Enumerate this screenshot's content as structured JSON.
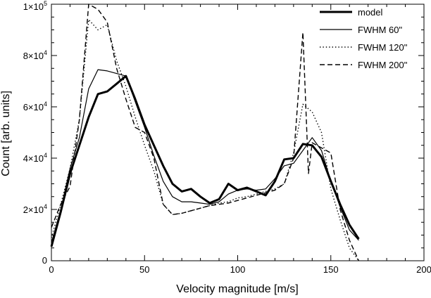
{
  "chart_data": {
    "type": "line",
    "xlabel": "Velocity magnitude [m/s]",
    "ylabel": "Count [arb. units]",
    "xlim": [
      0,
      200
    ],
    "ylim": [
      0,
      100000
    ],
    "grid": false,
    "legend_position": "top-right",
    "x_ticks": [
      {
        "value": 0,
        "label": "0"
      },
      {
        "value": 50,
        "label": "50"
      },
      {
        "value": 100,
        "label": "100"
      },
      {
        "value": 150,
        "label": "150"
      },
      {
        "value": 200,
        "label": "200"
      }
    ],
    "y_ticks": [
      {
        "value": 0,
        "mantissa": "0",
        "exponent": ""
      },
      {
        "value": 20000,
        "mantissa": "2×10",
        "exponent": "4"
      },
      {
        "value": 40000,
        "mantissa": "4×10",
        "exponent": "4"
      },
      {
        "value": 60000,
        "mantissa": "6×10",
        "exponent": "4"
      },
      {
        "value": 80000,
        "mantissa": "8×10",
        "exponent": "4"
      },
      {
        "value": 100000,
        "mantissa": "1×10",
        "exponent": "5"
      }
    ],
    "series": [
      {
        "name": "model",
        "style": "solid-thick",
        "points": [
          [
            0,
            5500
          ],
          [
            5,
            19000
          ],
          [
            10,
            34000
          ],
          [
            15,
            45000
          ],
          [
            20,
            56000
          ],
          [
            25,
            65000
          ],
          [
            30,
            66000
          ],
          [
            35,
            69000
          ],
          [
            40,
            72000
          ],
          [
            45,
            63000
          ],
          [
            50,
            53000
          ],
          [
            55,
            45000
          ],
          [
            60,
            37000
          ],
          [
            65,
            30000
          ],
          [
            70,
            27000
          ],
          [
            75,
            28000
          ],
          [
            80,
            25000
          ],
          [
            85,
            22500
          ],
          [
            90,
            24000
          ],
          [
            95,
            30000
          ],
          [
            100,
            27500
          ],
          [
            105,
            28500
          ],
          [
            110,
            27000
          ],
          [
            115,
            25500
          ],
          [
            120,
            31000
          ],
          [
            125,
            39500
          ],
          [
            130,
            40000
          ],
          [
            135,
            45500
          ],
          [
            140,
            45000
          ],
          [
            145,
            40500
          ],
          [
            150,
            31000
          ],
          [
            155,
            22000
          ],
          [
            160,
            14000
          ],
          [
            165,
            8500
          ]
        ]
      },
      {
        "name": "FWHM 60\"",
        "style": "solid-thin",
        "points": [
          [
            0,
            7000
          ],
          [
            5,
            20000
          ],
          [
            10,
            36000
          ],
          [
            15,
            48000
          ],
          [
            20,
            67000
          ],
          [
            25,
            74500
          ],
          [
            30,
            74000
          ],
          [
            35,
            73000
          ],
          [
            40,
            72000
          ],
          [
            45,
            62000
          ],
          [
            50,
            52000
          ],
          [
            55,
            41000
          ],
          [
            60,
            31000
          ],
          [
            65,
            25000
          ],
          [
            70,
            23000
          ],
          [
            75,
            23000
          ],
          [
            80,
            22500
          ],
          [
            85,
            22000
          ],
          [
            90,
            23000
          ],
          [
            95,
            26000
          ],
          [
            100,
            27500
          ],
          [
            105,
            28000
          ],
          [
            110,
            27500
          ],
          [
            115,
            28000
          ],
          [
            120,
            32000
          ],
          [
            125,
            37000
          ],
          [
            130,
            38000
          ],
          [
            135,
            43000
          ],
          [
            140,
            48000
          ],
          [
            145,
            43000
          ],
          [
            150,
            31000
          ],
          [
            155,
            21000
          ],
          [
            160,
            12000
          ],
          [
            165,
            8000
          ]
        ]
      },
      {
        "name": "FWHM 120\"",
        "style": "dotted",
        "points": [
          [
            0,
            9000
          ],
          [
            5,
            22000
          ],
          [
            10,
            36000
          ],
          [
            15,
            55000
          ],
          [
            20,
            94000
          ],
          [
            25,
            90000
          ],
          [
            30,
            92000
          ],
          [
            35,
            78000
          ],
          [
            40,
            68000
          ],
          [
            45,
            56000
          ],
          [
            50,
            45000
          ],
          [
            55,
            35000
          ],
          [
            60,
            22000
          ],
          [
            65,
            18000
          ],
          [
            70,
            18500
          ],
          [
            75,
            19500
          ],
          [
            80,
            20500
          ],
          [
            85,
            21500
          ],
          [
            90,
            22500
          ],
          [
            95,
            23000
          ],
          [
            100,
            24500
          ],
          [
            105,
            25000
          ],
          [
            110,
            26000
          ],
          [
            115,
            27000
          ],
          [
            120,
            28000
          ],
          [
            125,
            30000
          ],
          [
            130,
            42000
          ],
          [
            135,
            61000
          ],
          [
            140,
            58000
          ],
          [
            145,
            50000
          ],
          [
            150,
            28000
          ],
          [
            155,
            16000
          ],
          [
            160,
            5000
          ],
          [
            165,
            0
          ]
        ]
      },
      {
        "name": "FWHM 200\"",
        "style": "dashed",
        "points": [
          [
            0,
            13000
          ],
          [
            5,
            22000
          ],
          [
            10,
            29000
          ],
          [
            15,
            55000
          ],
          [
            20,
            100000
          ],
          [
            25,
            98000
          ],
          [
            30,
            93000
          ],
          [
            35,
            75000
          ],
          [
            40,
            63000
          ],
          [
            45,
            52000
          ],
          [
            50,
            50000
          ],
          [
            55,
            40000
          ],
          [
            60,
            22000
          ],
          [
            65,
            18000
          ],
          [
            70,
            18500
          ],
          [
            75,
            19500
          ],
          [
            80,
            20500
          ],
          [
            85,
            21500
          ],
          [
            90,
            22000
          ],
          [
            95,
            22500
          ],
          [
            100,
            23500
          ],
          [
            105,
            24500
          ],
          [
            110,
            25500
          ],
          [
            115,
            26500
          ],
          [
            120,
            27500
          ],
          [
            125,
            30000
          ],
          [
            130,
            40000
          ],
          [
            135,
            89000
          ],
          [
            138,
            34000
          ],
          [
            140,
            46000
          ],
          [
            145,
            44000
          ],
          [
            150,
            42000
          ],
          [
            155,
            20000
          ],
          [
            160,
            8000
          ],
          [
            165,
            0
          ]
        ]
      }
    ]
  }
}
